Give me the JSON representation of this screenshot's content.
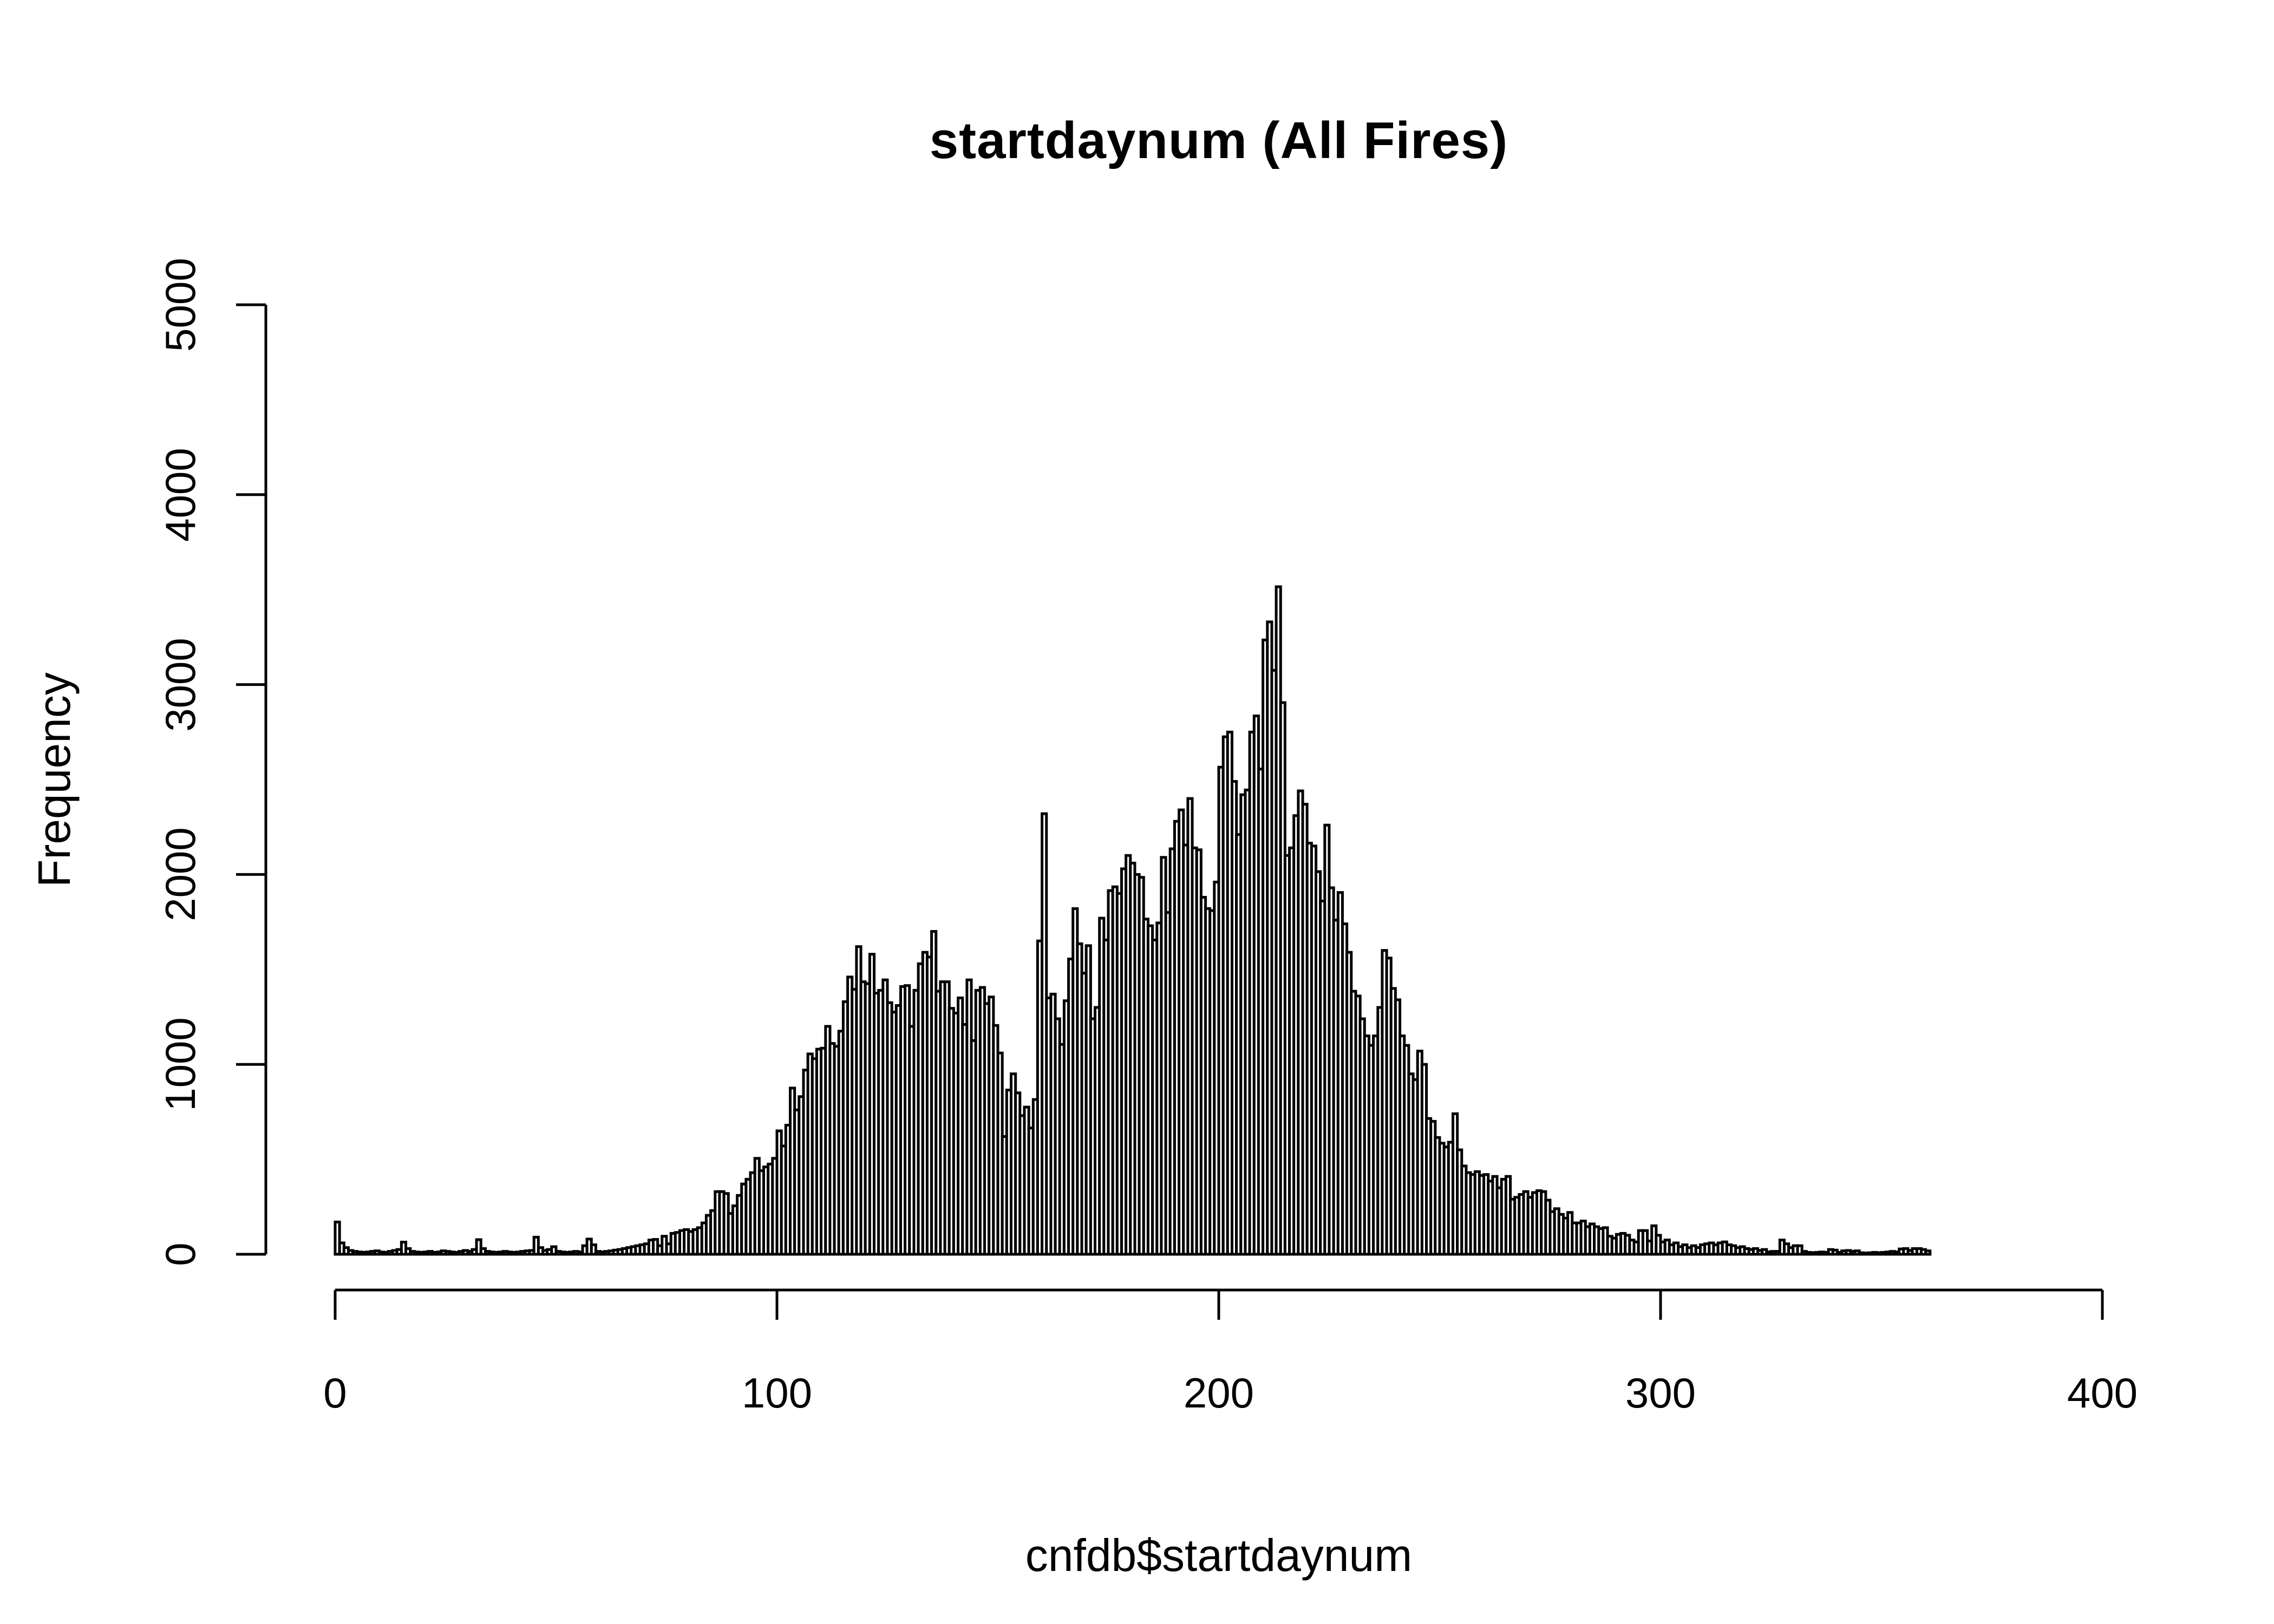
{
  "title": "startdaynum (All Fires)",
  "x_axis": {
    "label": "cnfdb$startdaynum",
    "ticks": [
      0,
      100,
      200,
      300,
      400
    ],
    "range": [
      0,
      400
    ]
  },
  "y_axis": {
    "label": "Frequency",
    "ticks": [
      0,
      1000,
      2000,
      3000,
      4000,
      5000
    ],
    "range": [
      0,
      5000
    ]
  },
  "colors": {
    "background": "#ffffff",
    "bar_fill": "#ffffff",
    "bar_stroke": "#000000",
    "axis": "#000000",
    "text": "#000000"
  },
  "chart_data": {
    "type": "bar",
    "subtype": "histogram",
    "title": "startdaynum (All Fires)",
    "xlabel": "cnfdb$startdaynum",
    "ylabel": "Frequency",
    "xlim": [
      0,
      400
    ],
    "ylim": [
      0,
      5000
    ],
    "grid": false,
    "legend": null,
    "x_ticks": [
      0,
      100,
      200,
      300,
      400
    ],
    "y_ticks": [
      0,
      1000,
      2000,
      3000,
      4000,
      5000
    ],
    "bin_start": 0,
    "bin_width": 1,
    "values": [
      170,
      60,
      35,
      20,
      15,
      12,
      10,
      12,
      15,
      18,
      12,
      10,
      15,
      20,
      25,
      64,
      30,
      15,
      12,
      10,
      12,
      15,
      10,
      12,
      18,
      15,
      12,
      10,
      15,
      20,
      15,
      25,
      77,
      30,
      15,
      12,
      10,
      12,
      15,
      12,
      10,
      12,
      15,
      18,
      20,
      90,
      35,
      20,
      25,
      40,
      15,
      12,
      10,
      12,
      15,
      12,
      45,
      80,
      50,
      15,
      12,
      15,
      18,
      22,
      25,
      30,
      35,
      40,
      45,
      50,
      55,
      75,
      78,
      45,
      95,
      55,
      110,
      115,
      125,
      130,
      120,
      130,
      140,
      165,
      205,
      230,
      330,
      330,
      320,
      215,
      255,
      310,
      370,
      395,
      430,
      505,
      440,
      460,
      475,
      505,
      650,
      570,
      680,
      875,
      760,
      830,
      970,
      1055,
      1030,
      1080,
      1085,
      1200,
      1110,
      1095,
      1175,
      1330,
      1460,
      1395,
      1620,
      1435,
      1425,
      1580,
      1375,
      1390,
      1445,
      1325,
      1275,
      1310,
      1410,
      1415,
      1200,
      1390,
      1530,
      1590,
      1565,
      1700,
      1385,
      1435,
      1435,
      1295,
      1270,
      1350,
      1210,
      1445,
      1125,
      1390,
      1405,
      1320,
      1355,
      1205,
      1060,
      620,
      865,
      950,
      850,
      730,
      775,
      665,
      815,
      1650,
      2320,
      1350,
      1370,
      1240,
      1105,
      1335,
      1555,
      1820,
      1635,
      1480,
      1625,
      1240,
      1300,
      1770,
      1655,
      1915,
      1935,
      1900,
      2030,
      2100,
      2060,
      2000,
      1985,
      1765,
      1730,
      1655,
      1745,
      2090,
      1800,
      2135,
      2280,
      2340,
      2155,
      2400,
      2140,
      2130,
      1880,
      1820,
      1810,
      1960,
      2565,
      2725,
      2750,
      2490,
      2210,
      2420,
      2445,
      2750,
      2835,
      2555,
      3235,
      3330,
      3075,
      3515,
      2905,
      2100,
      2140,
      2310,
      2440,
      2370,
      2165,
      2150,
      2015,
      1860,
      2260,
      1930,
      1760,
      1905,
      1740,
      1590,
      1385,
      1360,
      1240,
      1150,
      1100,
      1150,
      1300,
      1600,
      1560,
      1400,
      1340,
      1150,
      1100,
      950,
      920,
      1070,
      1000,
      715,
      700,
      615,
      585,
      565,
      590,
      740,
      550,
      465,
      430,
      420,
      435,
      415,
      420,
      385,
      410,
      350,
      395,
      410,
      290,
      300,
      315,
      330,
      300,
      325,
      335,
      330,
      285,
      225,
      240,
      210,
      190,
      220,
      165,
      165,
      175,
      145,
      160,
      145,
      135,
      140,
      95,
      85,
      105,
      110,
      100,
      75,
      65,
      125,
      125,
      70,
      150,
      100,
      65,
      75,
      50,
      60,
      40,
      50,
      35,
      45,
      35,
      50,
      55,
      60,
      50,
      60,
      65,
      50,
      45,
      35,
      40,
      30,
      25,
      30,
      20,
      25,
      12,
      15,
      15,
      75,
      55,
      35,
      45,
      45,
      15,
      10,
      8,
      10,
      12,
      10,
      25,
      22,
      10,
      18,
      20,
      15,
      18,
      8,
      6,
      8,
      10,
      8,
      10,
      12,
      15,
      12,
      28,
      30,
      20,
      30,
      30,
      25,
      18
    ]
  }
}
